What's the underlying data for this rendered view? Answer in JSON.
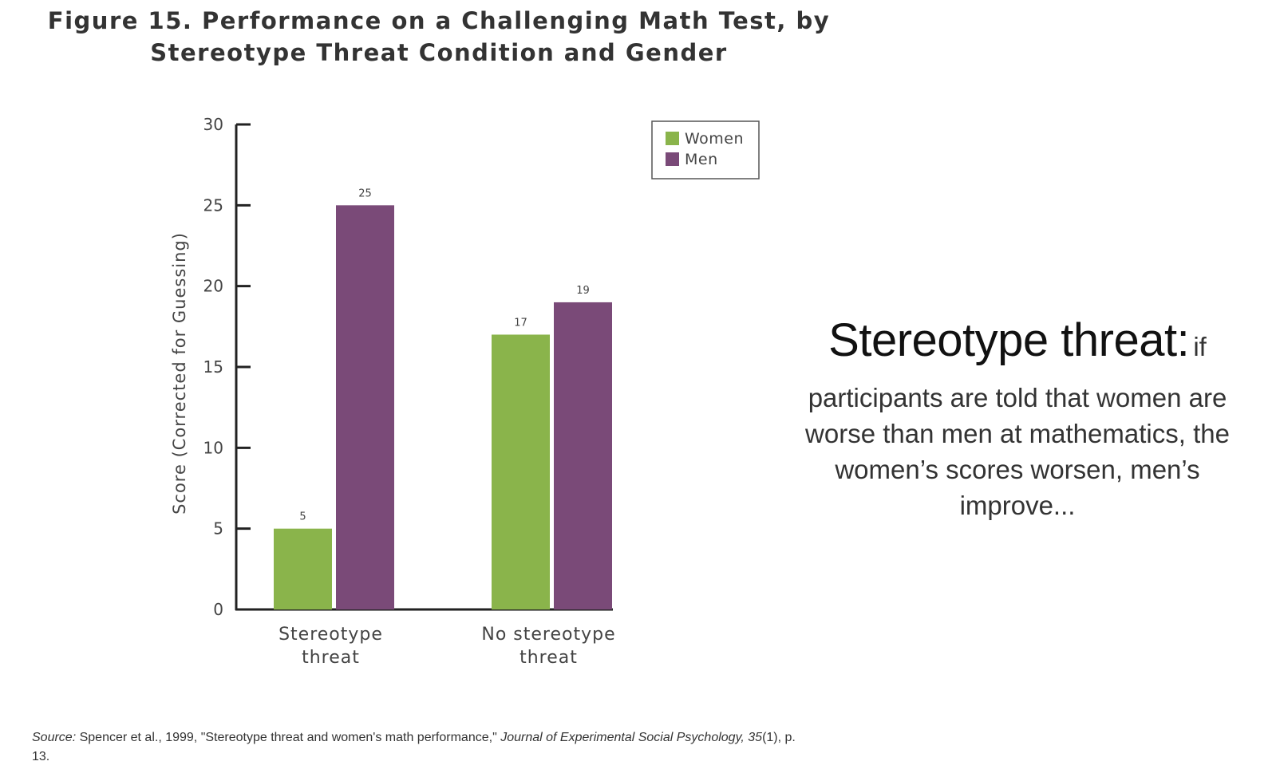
{
  "figure": {
    "title_line1": "Figure 15. Performance on a Challenging Math Test, by",
    "title_line2": "Stereotype Threat Condition and Gender"
  },
  "chart_data": {
    "type": "bar",
    "categories": [
      "Stereotype threat",
      "No stereotype threat"
    ],
    "category_lines": [
      [
        "Stereotype",
        "threat"
      ],
      [
        "No stereotype",
        "threat"
      ]
    ],
    "series": [
      {
        "name": "Women",
        "values": [
          5,
          17
        ],
        "labels": [
          "5",
          "17"
        ],
        "color": "#8ab44b"
      },
      {
        "name": "Men",
        "values": [
          25,
          19
        ],
        "labels": [
          "25",
          "19"
        ],
        "color": "#7a4a78"
      }
    ],
    "ylabel": "Score (Corrected for Guessing)",
    "xlabel": "",
    "ylim": [
      0,
      30
    ],
    "yticks": [
      0,
      5,
      10,
      15,
      20,
      25,
      30
    ],
    "legend_position": "top-right",
    "grid": false
  },
  "source": {
    "label": "Source:",
    "text": "Spencer et al., 1999, \"Stereotype threat and women's math performance,\"",
    "journal": "Journal of Experimental Social Psychology, 35",
    "issue": "(1), p. 13."
  },
  "side_note": {
    "heading": "Stereotype threat:",
    "lead": "if",
    "body": "participants are told that women are worse than men at mathematics, the women’s scores worsen, men’s improve..."
  }
}
